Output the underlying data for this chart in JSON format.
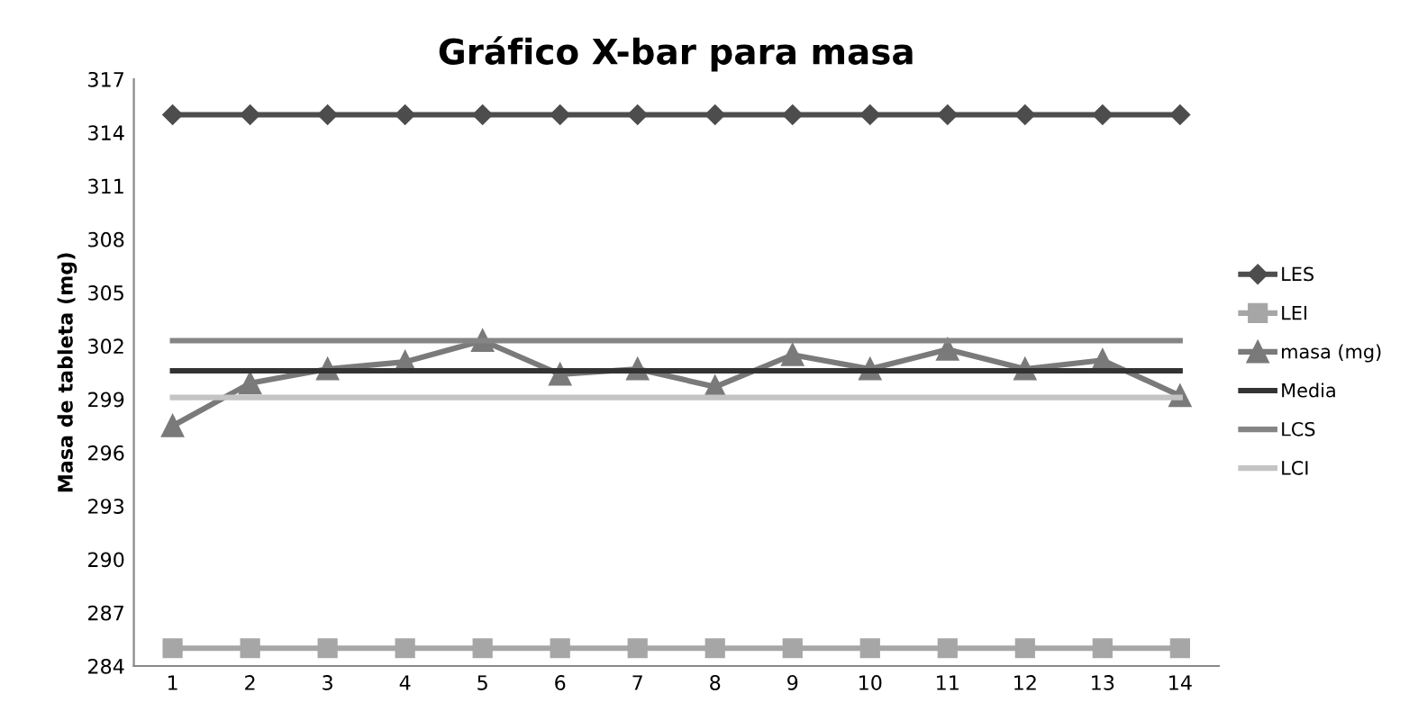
{
  "chart_data": {
    "type": "line",
    "title": "Gráfico X-bar para masa",
    "ylabel": "Masa de tableta (mg)",
    "categories": [
      "1",
      "2",
      "3",
      "4",
      "5",
      "6",
      "7",
      "8",
      "9",
      "10",
      "11",
      "12",
      "13",
      "14"
    ],
    "ylim": [
      284,
      317
    ],
    "yticks": [
      284,
      287,
      290,
      293,
      296,
      299,
      302,
      305,
      308,
      311,
      314,
      317
    ],
    "grid": false,
    "legend": "right",
    "series": [
      {
        "name": "LES",
        "color": "#4d4d4d",
        "marker": "diamond",
        "values": [
          315,
          315,
          315,
          315,
          315,
          315,
          315,
          315,
          315,
          315,
          315,
          315,
          315,
          315
        ]
      },
      {
        "name": "LEI",
        "color": "#a6a6a6",
        "marker": "square",
        "values": [
          285,
          285,
          285,
          285,
          285,
          285,
          285,
          285,
          285,
          285,
          285,
          285,
          285,
          285
        ]
      },
      {
        "name": "masa (mg)",
        "color": "#7a7a7a",
        "marker": "triangle",
        "values": [
          297.5,
          299.9,
          300.7,
          301.1,
          302.3,
          300.4,
          300.7,
          299.7,
          301.5,
          300.7,
          301.8,
          300.7,
          301.2,
          299.2
        ]
      },
      {
        "name": "Media",
        "color": "#333333",
        "marker": "none",
        "values": [
          300.6,
          300.6,
          300.6,
          300.6,
          300.6,
          300.6,
          300.6,
          300.6,
          300.6,
          300.6,
          300.6,
          300.6,
          300.6,
          300.6
        ]
      },
      {
        "name": "LCS",
        "color": "#858585",
        "marker": "none",
        "values": [
          302.3,
          302.3,
          302.3,
          302.3,
          302.3,
          302.3,
          302.3,
          302.3,
          302.3,
          302.3,
          302.3,
          302.3,
          302.3,
          302.3
        ]
      },
      {
        "name": "LCI",
        "color": "#c4c4c4",
        "marker": "none",
        "values": [
          299.1,
          299.1,
          299.1,
          299.1,
          299.1,
          299.1,
          299.1,
          299.1,
          299.1,
          299.1,
          299.1,
          299.1,
          299.1,
          299.1
        ]
      }
    ]
  }
}
